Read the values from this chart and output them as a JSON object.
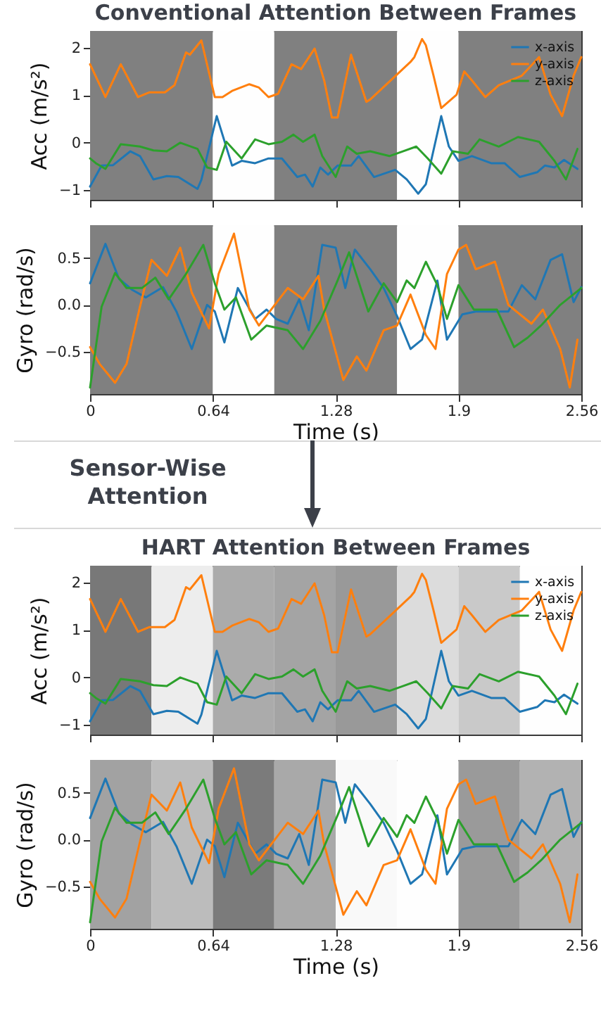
{
  "chart_data": [
    {
      "type": "line",
      "title": "Conventional Attention Between Frames",
      "ylabel": "Acc (m/s²)",
      "xlim": [
        0,
        2.56
      ],
      "xticks": [
        0,
        0.64,
        1.28,
        1.92,
        2.56
      ],
      "ylim": [
        -1.2,
        2.35
      ],
      "yticks": [
        {
          "value": -1,
          "label": "−1"
        },
        0,
        1,
        2
      ],
      "tick_labels": "y",
      "legend": "top right",
      "bands": [
        {
          "axis": "x",
          "from": 0,
          "to": 0.64,
          "color": "#808080"
        },
        {
          "axis": "x",
          "from": 0.64,
          "to": 0.96,
          "color": "#fefefe"
        },
        {
          "axis": "x",
          "from": 0.96,
          "to": 1.6,
          "color": "#808080"
        },
        {
          "axis": "x",
          "from": 1.6,
          "to": 1.92,
          "color": "#fefefe"
        },
        {
          "axis": "x",
          "from": 1.92,
          "to": 2.56,
          "color": "#808080"
        }
      ],
      "series": [
        {
          "name": "x-axis",
          "color": "#1f77b4",
          "x": [
            0,
            0.06,
            0.12,
            0.21,
            0.26,
            0.33,
            0.4,
            0.46,
            0.56,
            0.58,
            0.66,
            0.74,
            0.79,
            0.86,
            0.93,
            1.0,
            1.08,
            1.12,
            1.16,
            1.2,
            1.24,
            1.29,
            1.36,
            1.4,
            1.48,
            1.59,
            1.65,
            1.71,
            1.75,
            1.83,
            1.87,
            1.92,
            1.99,
            2.09,
            2.16,
            2.24,
            2.33,
            2.37,
            2.42,
            2.47,
            2.54
          ],
          "values": [
            -0.92,
            -0.48,
            -0.47,
            -0.18,
            -0.28,
            -0.77,
            -0.7,
            -0.72,
            -0.97,
            -0.78,
            0.56,
            -0.48,
            -0.38,
            -0.43,
            -0.33,
            -0.33,
            -0.72,
            -0.67,
            -0.92,
            -0.52,
            -0.67,
            -0.48,
            -0.48,
            -0.28,
            -0.72,
            -0.57,
            -0.77,
            -1.07,
            -0.87,
            0.56,
            -0.08,
            -0.38,
            -0.28,
            -0.43,
            -0.43,
            -0.72,
            -0.62,
            -0.48,
            -0.52,
            -0.36,
            -0.55
          ]
        },
        {
          "name": "y-axis",
          "color": "#ff7f0e",
          "x": [
            0,
            0.08,
            0.16,
            0.25,
            0.31,
            0.39,
            0.44,
            0.5,
            0.52,
            0.58,
            0.65,
            0.69,
            0.74,
            0.83,
            0.88,
            0.93,
            0.98,
            1.05,
            1.1,
            1.17,
            1.22,
            1.26,
            1.29,
            1.36,
            1.44,
            1.46,
            1.58,
            1.67,
            1.69,
            1.73,
            1.75,
            1.79,
            1.83,
            1.91,
            1.95,
            1.99,
            2.06,
            2.13,
            2.25,
            2.34,
            2.4,
            2.46,
            2.52,
            2.56
          ],
          "values": [
            1.65,
            0.96,
            1.65,
            0.96,
            1.06,
            1.06,
            1.21,
            1.9,
            1.85,
            2.15,
            0.96,
            0.96,
            1.09,
            1.23,
            1.16,
            0.96,
            1.03,
            1.65,
            1.55,
            1.98,
            1.31,
            0.53,
            0.53,
            1.85,
            0.86,
            0.91,
            1.36,
            1.7,
            1.8,
            2.18,
            2.05,
            1.41,
            0.73,
            1.01,
            1.5,
            1.31,
            0.96,
            1.21,
            1.41,
            1.8,
            1.01,
            0.56,
            1.41,
            1.8
          ]
        },
        {
          "name": "z-axis",
          "color": "#2ca02c",
          "x": [
            0,
            0.03,
            0.08,
            0.16,
            0.26,
            0.33,
            0.4,
            0.47,
            0.56,
            0.61,
            0.66,
            0.71,
            0.79,
            0.86,
            0.93,
            1.0,
            1.06,
            1.11,
            1.17,
            1.21,
            1.28,
            1.34,
            1.39,
            1.46,
            1.56,
            1.63,
            1.7,
            1.76,
            1.83,
            1.89,
            1.97,
            2.03,
            2.13,
            2.23,
            2.34,
            2.42,
            2.48,
            2.54
          ],
          "values": [
            -0.33,
            -0.43,
            -0.55,
            -0.03,
            -0.08,
            -0.16,
            -0.18,
            0,
            -0.13,
            -0.52,
            -0.57,
            0.02,
            -0.33,
            0.07,
            -0.03,
            0.02,
            0.17,
            0.02,
            0.17,
            -0.28,
            -0.72,
            -0.08,
            -0.23,
            -0.18,
            -0.28,
            -0.18,
            -0.08,
            -0.33,
            -0.65,
            -0.18,
            -0.23,
            0.07,
            -0.08,
            0.12,
            0.02,
            -0.38,
            -0.77,
            -0.13
          ]
        }
      ]
    },
    {
      "type": "line",
      "xlabel": "Time (s)",
      "ylabel": "Gyro (rad/s)",
      "xlim": [
        0,
        2.56
      ],
      "xticks": [
        0,
        0.64,
        1.28,
        {
          "value": 1.92,
          "label": "1.9"
        },
        2.56
      ],
      "ylim": [
        -0.95,
        0.85
      ],
      "yticks": [
        {
          "value": -0.5,
          "label": "−0.5"
        },
        {
          "value": 0,
          "label": "0.0"
        },
        0.5
      ],
      "bands": [
        {
          "axis": "x",
          "from": 0,
          "to": 0.64,
          "color": "#808080"
        },
        {
          "axis": "x",
          "from": 0.64,
          "to": 0.96,
          "color": "#fefefe"
        },
        {
          "axis": "x",
          "from": 0.96,
          "to": 1.6,
          "color": "#808080"
        },
        {
          "axis": "x",
          "from": 1.6,
          "to": 1.92,
          "color": "#fefefe"
        },
        {
          "axis": "x",
          "from": 1.92,
          "to": 2.56,
          "color": "#808080"
        }
      ],
      "series": [
        {
          "color": "#1f77b4",
          "x": [
            0,
            0.08,
            0.15,
            0.22,
            0.29,
            0.38,
            0.45,
            0.53,
            0.58,
            0.61,
            0.65,
            0.7,
            0.77,
            0.86,
            0.92,
            0.97,
            1.03,
            1.09,
            1.14,
            1.21,
            1.28,
            1.33,
            1.38,
            1.46,
            1.53,
            1.6,
            1.67,
            1.73,
            1.81,
            1.86,
            1.94,
            2.01,
            2.09,
            2.18,
            2.25,
            2.32,
            2.4,
            2.46,
            2.52,
            2.56
          ],
          "values": [
            0.23,
            0.65,
            0.28,
            0.16,
            0.08,
            0.19,
            -0.07,
            -0.47,
            -0.17,
            0,
            -0.07,
            -0.4,
            0.18,
            -0.15,
            -0.05,
            -0.15,
            -0.2,
            0.06,
            -0.27,
            0.64,
            0.61,
            0.18,
            0.59,
            0.38,
            0.18,
            -0.12,
            -0.47,
            -0.37,
            0.26,
            -0.37,
            -0.1,
            -0.07,
            -0.07,
            -0.07,
            0.21,
            0.06,
            0.48,
            0.54,
            0.03,
            0.19
          ]
        },
        {
          "color": "#ff7f0e",
          "x": [
            0,
            0.05,
            0.13,
            0.19,
            0.26,
            0.32,
            0.4,
            0.47,
            0.53,
            0.62,
            0.67,
            0.75,
            0.83,
            0.88,
            1.03,
            1.11,
            1.19,
            1.22,
            1.32,
            1.39,
            1.44,
            1.53,
            1.6,
            1.67,
            1.75,
            1.8,
            1.86,
            1.92,
            1.96,
            2.01,
            2.11,
            2.18,
            2.3,
            2.36,
            2.45,
            2.5,
            2.54
          ],
          "values": [
            -0.45,
            -0.63,
            -0.83,
            -0.63,
            -0.02,
            0.48,
            0.31,
            0.61,
            0.13,
            -0.25,
            0.33,
            0.76,
            -0.05,
            -0.22,
            0.18,
            0.06,
            0.31,
            -0.05,
            -0.8,
            -0.55,
            -0.7,
            -0.27,
            -0.22,
            0.11,
            -0.32,
            -0.47,
            0.33,
            0.59,
            0.64,
            0.38,
            0.46,
            0,
            -0.2,
            -0.05,
            -0.47,
            -0.88,
            -0.37
          ]
        },
        {
          "color": "#2ca02c",
          "x": [
            0,
            0.06,
            0.13,
            0.19,
            0.27,
            0.34,
            0.41,
            0.5,
            0.59,
            0.65,
            0.7,
            0.76,
            0.84,
            0.92,
            1.03,
            1.11,
            1.2,
            1.29,
            1.35,
            1.45,
            1.53,
            1.6,
            1.65,
            1.69,
            1.75,
            1.81,
            1.86,
            1.92,
            2.0,
            2.12,
            2.21,
            2.28,
            2.35,
            2.45,
            2.56
          ],
          "values": [
            -0.88,
            -0.02,
            0.34,
            0.18,
            0.18,
            0.29,
            0.06,
            0.33,
            0.64,
            0.23,
            -0.05,
            0.08,
            -0.37,
            -0.22,
            -0.27,
            -0.47,
            -0.17,
            0.26,
            0.56,
            -0.07,
            0.23,
            0.03,
            0.26,
            0.18,
            0.46,
            0.21,
            -0.15,
            0.21,
            -0.05,
            -0.05,
            -0.45,
            -0.35,
            -0.22,
            0,
            0.18
          ]
        }
      ]
    },
    {
      "type": "line",
      "title": "HART Attention Between Frames",
      "annotations": [
        "Sensor-Wise Attention"
      ],
      "ylabel": "Acc (m/s²)",
      "xlim": [
        0,
        2.56
      ],
      "xticks": [
        0,
        0.64,
        1.28,
        1.92,
        2.56
      ],
      "ylim": [
        -1.2,
        2.35
      ],
      "yticks": [
        {
          "value": -1,
          "label": "−1"
        },
        0,
        1,
        2
      ],
      "tick_labels": "y",
      "legend": "top right",
      "bands": [
        {
          "axis": "x",
          "from": 0,
          "to": 0.32,
          "color": "#787878"
        },
        {
          "axis": "x",
          "from": 0.32,
          "to": 0.64,
          "color": "#ededed"
        },
        {
          "axis": "x",
          "from": 0.64,
          "to": 0.96,
          "color": "#ababab"
        },
        {
          "axis": "x",
          "from": 0.96,
          "to": 1.28,
          "color": "#a4a4a4"
        },
        {
          "axis": "x",
          "from": 1.28,
          "to": 1.6,
          "color": "#999999"
        },
        {
          "axis": "x",
          "from": 1.6,
          "to": 1.92,
          "color": "#dcdcdc"
        },
        {
          "axis": "x",
          "from": 1.92,
          "to": 2.24,
          "color": "#c9c9c9"
        },
        {
          "axis": "x",
          "from": 2.24,
          "to": 2.56,
          "color": "#fefefe"
        }
      ],
      "series": [
        {
          "name": "x-axis",
          "color": "#1f77b4",
          "x": [
            0,
            0.06,
            0.12,
            0.21,
            0.26,
            0.33,
            0.4,
            0.46,
            0.56,
            0.58,
            0.66,
            0.74,
            0.79,
            0.86,
            0.93,
            1.0,
            1.08,
            1.12,
            1.16,
            1.2,
            1.24,
            1.29,
            1.36,
            1.4,
            1.48,
            1.59,
            1.65,
            1.71,
            1.75,
            1.83,
            1.87,
            1.92,
            1.99,
            2.09,
            2.16,
            2.24,
            2.33,
            2.37,
            2.42,
            2.47,
            2.54
          ],
          "values": [
            -0.92,
            -0.48,
            -0.47,
            -0.18,
            -0.28,
            -0.77,
            -0.7,
            -0.72,
            -0.97,
            -0.78,
            0.56,
            -0.48,
            -0.38,
            -0.43,
            -0.33,
            -0.33,
            -0.72,
            -0.67,
            -0.92,
            -0.52,
            -0.67,
            -0.48,
            -0.48,
            -0.28,
            -0.72,
            -0.57,
            -0.77,
            -1.07,
            -0.87,
            0.56,
            -0.08,
            -0.38,
            -0.28,
            -0.43,
            -0.43,
            -0.72,
            -0.62,
            -0.48,
            -0.52,
            -0.36,
            -0.55
          ]
        },
        {
          "name": "y-axis",
          "color": "#ff7f0e",
          "x": [
            0,
            0.08,
            0.16,
            0.25,
            0.31,
            0.39,
            0.44,
            0.5,
            0.52,
            0.58,
            0.65,
            0.69,
            0.74,
            0.83,
            0.88,
            0.93,
            0.98,
            1.05,
            1.1,
            1.17,
            1.22,
            1.26,
            1.29,
            1.36,
            1.44,
            1.46,
            1.58,
            1.67,
            1.69,
            1.73,
            1.75,
            1.79,
            1.83,
            1.91,
            1.95,
            1.99,
            2.06,
            2.13,
            2.25,
            2.34,
            2.4,
            2.46,
            2.52,
            2.56
          ],
          "values": [
            1.65,
            0.96,
            1.65,
            0.96,
            1.06,
            1.06,
            1.21,
            1.9,
            1.85,
            2.15,
            0.96,
            0.96,
            1.09,
            1.23,
            1.16,
            0.96,
            1.03,
            1.65,
            1.55,
            1.98,
            1.31,
            0.53,
            0.53,
            1.85,
            0.86,
            0.91,
            1.36,
            1.7,
            1.8,
            2.18,
            2.05,
            1.41,
            0.73,
            1.01,
            1.5,
            1.31,
            0.96,
            1.21,
            1.41,
            1.8,
            1.01,
            0.56,
            1.41,
            1.8
          ]
        },
        {
          "name": "z-axis",
          "color": "#2ca02c",
          "x": [
            0,
            0.03,
            0.08,
            0.16,
            0.26,
            0.33,
            0.4,
            0.47,
            0.56,
            0.61,
            0.66,
            0.71,
            0.79,
            0.86,
            0.93,
            1.0,
            1.06,
            1.11,
            1.17,
            1.21,
            1.28,
            1.34,
            1.39,
            1.46,
            1.56,
            1.63,
            1.7,
            1.76,
            1.83,
            1.89,
            1.97,
            2.03,
            2.13,
            2.23,
            2.34,
            2.42,
            2.48,
            2.54
          ],
          "values": [
            -0.33,
            -0.43,
            -0.55,
            -0.03,
            -0.08,
            -0.16,
            -0.18,
            0,
            -0.13,
            -0.52,
            -0.57,
            0.02,
            -0.33,
            0.07,
            -0.03,
            0.02,
            0.17,
            0.02,
            0.17,
            -0.28,
            -0.72,
            -0.08,
            -0.23,
            -0.18,
            -0.28,
            -0.18,
            -0.08,
            -0.33,
            -0.65,
            -0.18,
            -0.23,
            0.07,
            -0.08,
            0.12,
            0.02,
            -0.38,
            -0.77,
            -0.13
          ]
        }
      ]
    },
    {
      "type": "line",
      "xlabel": "Time (s)",
      "ylabel": "Gyro (rad/s)",
      "xlim": [
        0,
        2.56
      ],
      "xticks": [
        0,
        0.64,
        1.28,
        {
          "value": 1.92,
          "label": "1.9"
        },
        2.56
      ],
      "ylim": [
        -0.95,
        0.85
      ],
      "yticks": [
        {
          "value": -0.5,
          "label": "−0.5"
        },
        {
          "value": 0,
          "label": "0.0"
        },
        0.5
      ],
      "bands": [
        {
          "axis": "x",
          "from": 0,
          "to": 0.32,
          "color": "#a2a2a2"
        },
        {
          "axis": "x",
          "from": 0.32,
          "to": 0.64,
          "color": "#bcbcbc"
        },
        {
          "axis": "x",
          "from": 0.64,
          "to": 0.96,
          "color": "#7b7b7b"
        },
        {
          "axis": "x",
          "from": 0.96,
          "to": 1.28,
          "color": "#a9a9a9"
        },
        {
          "axis": "x",
          "from": 1.28,
          "to": 1.6,
          "color": "#f9f9f9"
        },
        {
          "axis": "x",
          "from": 1.6,
          "to": 1.92,
          "color": "#fefefe"
        },
        {
          "axis": "x",
          "from": 1.92,
          "to": 2.24,
          "color": "#9a9a9a"
        },
        {
          "axis": "x",
          "from": 2.24,
          "to": 2.56,
          "color": "#b2b2b2"
        }
      ],
      "series": [
        {
          "color": "#1f77b4",
          "x": [
            0,
            0.08,
            0.15,
            0.22,
            0.29,
            0.38,
            0.45,
            0.53,
            0.58,
            0.61,
            0.65,
            0.7,
            0.77,
            0.86,
            0.92,
            0.97,
            1.03,
            1.09,
            1.14,
            1.21,
            1.28,
            1.33,
            1.38,
            1.46,
            1.53,
            1.6,
            1.67,
            1.73,
            1.81,
            1.86,
            1.94,
            2.01,
            2.09,
            2.18,
            2.25,
            2.32,
            2.4,
            2.46,
            2.52,
            2.56
          ],
          "values": [
            0.23,
            0.65,
            0.28,
            0.16,
            0.08,
            0.19,
            -0.07,
            -0.47,
            -0.17,
            0,
            -0.07,
            -0.4,
            0.18,
            -0.15,
            -0.05,
            -0.15,
            -0.2,
            0.06,
            -0.27,
            0.64,
            0.61,
            0.18,
            0.59,
            0.38,
            0.18,
            -0.12,
            -0.47,
            -0.37,
            0.26,
            -0.37,
            -0.1,
            -0.07,
            -0.07,
            -0.07,
            0.21,
            0.06,
            0.48,
            0.54,
            0.03,
            0.19
          ]
        },
        {
          "color": "#ff7f0e",
          "x": [
            0,
            0.05,
            0.13,
            0.19,
            0.26,
            0.32,
            0.4,
            0.47,
            0.53,
            0.62,
            0.67,
            0.75,
            0.83,
            0.88,
            1.03,
            1.11,
            1.19,
            1.22,
            1.32,
            1.39,
            1.44,
            1.53,
            1.6,
            1.67,
            1.75,
            1.8,
            1.86,
            1.92,
            1.96,
            2.01,
            2.11,
            2.18,
            2.3,
            2.36,
            2.45,
            2.5,
            2.54
          ],
          "values": [
            -0.45,
            -0.63,
            -0.83,
            -0.63,
            -0.02,
            0.48,
            0.31,
            0.61,
            0.13,
            -0.25,
            0.33,
            0.76,
            -0.05,
            -0.22,
            0.18,
            0.06,
            0.31,
            -0.05,
            -0.8,
            -0.55,
            -0.7,
            -0.27,
            -0.22,
            0.11,
            -0.32,
            -0.47,
            0.33,
            0.59,
            0.64,
            0.38,
            0.46,
            0,
            -0.2,
            -0.05,
            -0.47,
            -0.88,
            -0.37
          ]
        },
        {
          "color": "#2ca02c",
          "x": [
            0,
            0.06,
            0.13,
            0.19,
            0.27,
            0.34,
            0.41,
            0.5,
            0.59,
            0.65,
            0.7,
            0.76,
            0.84,
            0.92,
            1.03,
            1.11,
            1.2,
            1.29,
            1.35,
            1.45,
            1.53,
            1.6,
            1.65,
            1.69,
            1.75,
            1.81,
            1.86,
            1.92,
            2.0,
            2.12,
            2.21,
            2.28,
            2.35,
            2.45,
            2.56
          ],
          "values": [
            -0.88,
            -0.02,
            0.34,
            0.18,
            0.18,
            0.29,
            0.06,
            0.33,
            0.64,
            0.23,
            -0.05,
            0.08,
            -0.37,
            -0.22,
            -0.27,
            -0.47,
            -0.17,
            0.26,
            0.56,
            -0.07,
            0.23,
            0.03,
            0.26,
            0.18,
            0.46,
            0.21,
            -0.15,
            0.21,
            -0.05,
            -0.05,
            -0.45,
            -0.35,
            -0.22,
            0,
            0.18
          ]
        }
      ]
    }
  ]
}
